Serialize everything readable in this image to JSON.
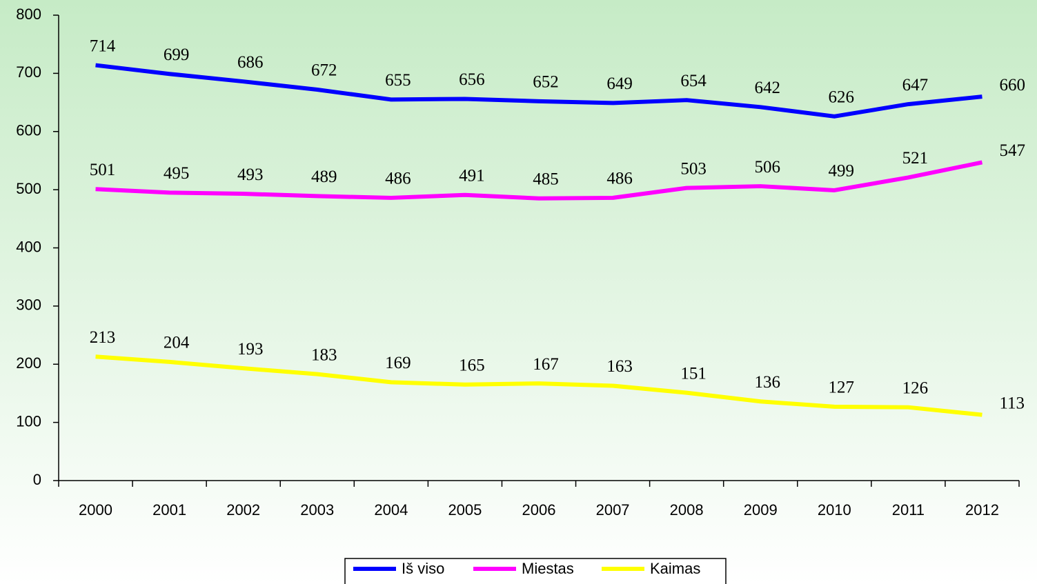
{
  "chart_data": {
    "type": "line",
    "categories": [
      "2000",
      "2001",
      "2002",
      "2003",
      "2004",
      "2005",
      "2006",
      "2007",
      "2008",
      "2009",
      "2010",
      "2011",
      "2012"
    ],
    "series": [
      {
        "name": "Iš viso",
        "color": "#0000ff",
        "values": [
          714,
          699,
          686,
          672,
          655,
          656,
          652,
          649,
          654,
          642,
          626,
          647,
          660
        ]
      },
      {
        "name": "Miestas",
        "color": "#ff00ff",
        "values": [
          501,
          495,
          493,
          489,
          486,
          491,
          485,
          486,
          503,
          506,
          499,
          521,
          547
        ]
      },
      {
        "name": "Kaimas",
        "color": "#ffff00",
        "values": [
          213,
          204,
          193,
          183,
          169,
          165,
          167,
          163,
          151,
          136,
          127,
          126,
          113
        ]
      }
    ],
    "ylim": [
      0,
      800
    ],
    "yticks": [
      0,
      100,
      200,
      300,
      400,
      500,
      600,
      700,
      800
    ],
    "legend": "bottom",
    "grid": false
  }
}
